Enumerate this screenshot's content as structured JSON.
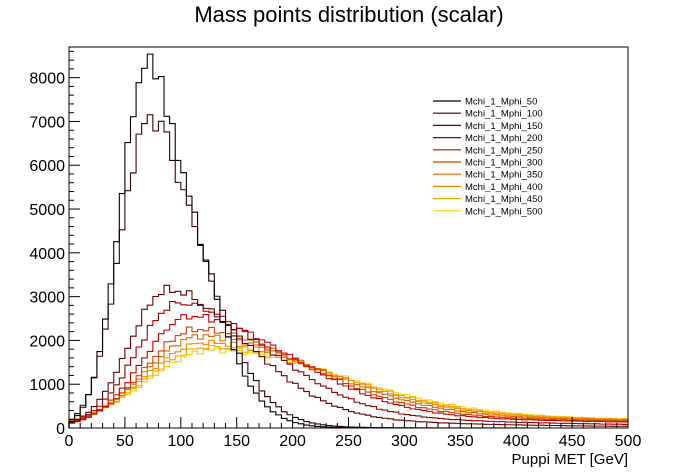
{
  "chart_data": {
    "type": "line",
    "style": "step-histogram",
    "title": "Mass points distribution (scalar)",
    "xlabel": "Puppi MET [GeV]",
    "ylabel": "",
    "xlim": [
      0,
      500
    ],
    "ylim": [
      0,
      8700
    ],
    "grid": false,
    "legend_position": "top-right",
    "x_ticks": [
      0,
      50,
      100,
      150,
      200,
      250,
      300,
      350,
      400,
      450,
      500
    ],
    "y_ticks": [
      0,
      1000,
      2000,
      3000,
      4000,
      5000,
      6000,
      7000,
      8000
    ],
    "series": [
      {
        "name": "Mchi_1_Mphi_50",
        "color": "#000000",
        "peak_x": 70,
        "peak_y": 8300,
        "rise": 24,
        "fall": 46,
        "tail": 30
      },
      {
        "name": "Mchi_1_Mphi_100",
        "color": "#330000",
        "peak_x": 72,
        "peak_y": 7050,
        "rise": 26,
        "fall": 50,
        "tail": 40
      },
      {
        "name": "Mchi_1_Mphi_150",
        "color": "#660000",
        "peak_x": 88,
        "peak_y": 3150,
        "rise": 34,
        "fall": 72,
        "tail": 150
      },
      {
        "name": "Mchi_1_Mphi_200",
        "color": "#990000",
        "peak_x": 98,
        "peak_y": 2850,
        "rise": 38,
        "fall": 82,
        "tail": 220
      },
      {
        "name": "Mchi_1_Mphi_250",
        "color": "#cc0000",
        "peak_x": 108,
        "peak_y": 2550,
        "rise": 42,
        "fall": 92,
        "tail": 320
      },
      {
        "name": "Mchi_1_Mphi_300",
        "color": "#cc4400",
        "peak_x": 114,
        "peak_y": 2250,
        "rise": 46,
        "fall": 98,
        "tail": 400
      },
      {
        "name": "Mchi_1_Mphi_350",
        "color": "#dd6600",
        "peak_x": 118,
        "peak_y": 2100,
        "rise": 50,
        "fall": 104,
        "tail": 500
      },
      {
        "name": "Mchi_1_Mphi_400",
        "color": "#ee8800",
        "peak_x": 122,
        "peak_y": 1950,
        "rise": 54,
        "fall": 110,
        "tail": 600
      },
      {
        "name": "Mchi_1_Mphi_450",
        "color": "#f0a800",
        "peak_x": 125,
        "peak_y": 1850,
        "rise": 56,
        "fall": 114,
        "tail": 700
      },
      {
        "name": "Mchi_1_Mphi_500",
        "color": "#ffcc00",
        "peak_x": 128,
        "peak_y": 1780,
        "rise": 58,
        "fall": 118,
        "tail": 800
      }
    ]
  }
}
